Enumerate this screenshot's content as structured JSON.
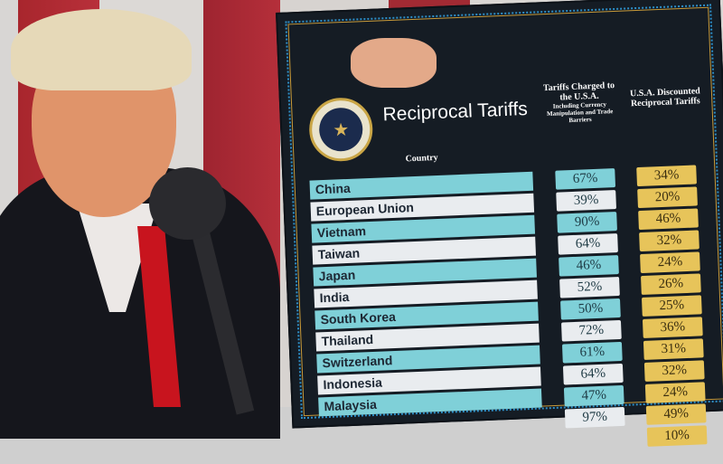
{
  "board": {
    "title": "Reciprocal Tariffs",
    "seal_text": "SEAL OF THE PRESIDENT OF THE UNITED STATES",
    "header_country": "Country",
    "header_charged": "Tariffs Charged to the U.S.A.",
    "header_charged_sub": "Including Currency Manipulation and Trade Barriers",
    "header_discounted": "U.S.A. Discounted Reciprocal Tariffs",
    "colors": {
      "teal": "#7fd0d8",
      "white": "#e9ecef",
      "yellow": "#e7c45a",
      "board": "#151c24"
    },
    "rows": [
      {
        "country": "China",
        "charged": "67%",
        "reciprocal": "34%"
      },
      {
        "country": "European Union",
        "charged": "39%",
        "reciprocal": "20%"
      },
      {
        "country": "Vietnam",
        "charged": "90%",
        "reciprocal": "46%"
      },
      {
        "country": "Taiwan",
        "charged": "64%",
        "reciprocal": "32%"
      },
      {
        "country": "Japan",
        "charged": "46%",
        "reciprocal": "24%"
      },
      {
        "country": "India",
        "charged": "52%",
        "reciprocal": "26%"
      },
      {
        "country": "South Korea",
        "charged": "50%",
        "reciprocal": "25%"
      },
      {
        "country": "Thailand",
        "charged": "72%",
        "reciprocal": "36%"
      },
      {
        "country": "Switzerland",
        "charged": "61%",
        "reciprocal": "31%"
      },
      {
        "country": "Indonesia",
        "charged": "64%",
        "reciprocal": "32%"
      },
      {
        "country": "Malaysia",
        "charged": "47%",
        "reciprocal": "24%"
      },
      {
        "country": "",
        "charged": "97%",
        "reciprocal": "49%"
      },
      {
        "country": "",
        "charged": "",
        "reciprocal": "10%"
      }
    ]
  }
}
